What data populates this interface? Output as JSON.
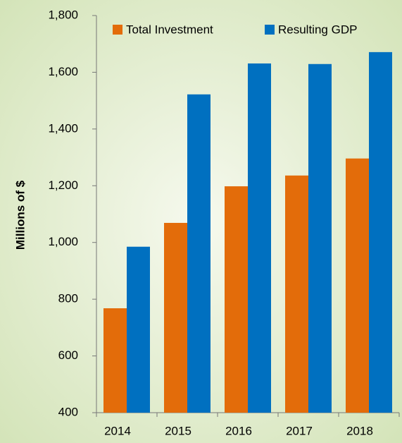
{
  "chart_data": {
    "type": "bar",
    "y_label": "Millions of $",
    "categories": [
      "2014",
      "2015",
      "2016",
      "2017",
      "2018"
    ],
    "series": [
      {
        "name": "Total Investment",
        "color": "#e36c0a",
        "values": [
          768,
          1069,
          1198,
          1236,
          1296
        ]
      },
      {
        "name": "Resulting GDP",
        "color": "#0070c0",
        "values": [
          985,
          1522,
          1631,
          1629,
          1671
        ]
      }
    ],
    "ylim": [
      400,
      1800
    ],
    "yticks": [
      400,
      600,
      800,
      {
        "value": 1000,
        "label": "1,000"
      },
      {
        "value": 1200,
        "label": "1,200"
      },
      {
        "value": 1400,
        "label": "1,400"
      },
      {
        "value": 1600,
        "label": "1,600"
      },
      {
        "value": 1800,
        "label": "1,800"
      }
    ],
    "grid": false,
    "legend": "top"
  }
}
